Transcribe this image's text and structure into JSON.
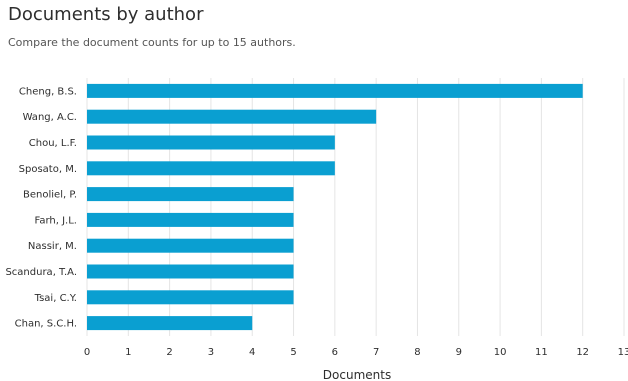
{
  "header": {
    "title": "Documents by author",
    "subtitle": "Compare the document counts for up to 15 authors."
  },
  "colors": {
    "bar": "#0a9fd1",
    "grid": "#e4e4e4",
    "text": "#2e2e2e"
  },
  "chart_data": {
    "type": "bar",
    "orientation": "horizontal",
    "categories": [
      "Cheng, B.S.",
      "Wang, A.C.",
      "Chou, L.F.",
      "Sposato, M.",
      "Benoliel, P.",
      "Farh, J.L.",
      "Nassir, M.",
      "Scandura, T.A.",
      "Tsai, C.Y.",
      "Chan, S.C.H."
    ],
    "values": [
      12,
      7,
      6,
      6,
      5,
      5,
      5,
      5,
      5,
      4
    ],
    "title": "Documents by author",
    "subtitle": "Compare the document counts for up to 15 authors.",
    "xlabel": "Documents",
    "ylabel": "",
    "xlim": [
      0,
      13
    ],
    "xticks": [
      "0",
      "1",
      "2",
      "3",
      "4",
      "5",
      "6",
      "7",
      "8",
      "9",
      "10",
      "11",
      "12",
      "13"
    ],
    "grid": true,
    "legend": "none"
  }
}
